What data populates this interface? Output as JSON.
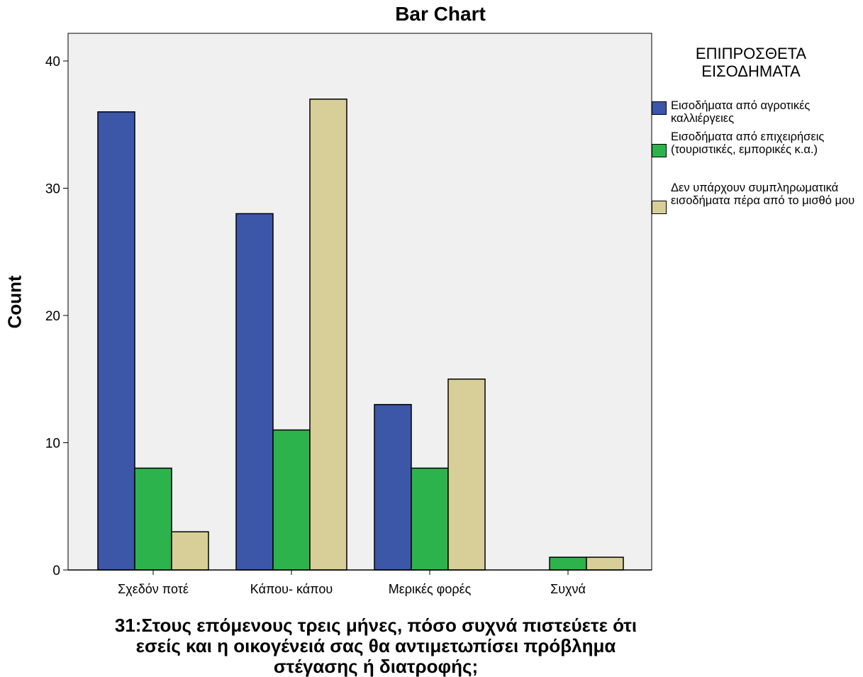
{
  "chart_data": {
    "type": "bar",
    "title": "Bar Chart",
    "xlabel": "31:Στους επόμενους τρεις μήνες, πόσο συχνά πιστεύετε ότι εσείς και η οικογένειά σας θα αντιμετωπίσει πρόβλημα στέγασης ή διατροφής;",
    "ylabel": "Count",
    "ylim": [
      0,
      42
    ],
    "yticks": [
      0,
      10,
      20,
      30,
      40
    ],
    "categories": [
      "Σχεδόν ποτέ",
      "Κάπου- κάπου",
      "Μερικές φορές",
      "Συχνά"
    ],
    "series": [
      {
        "name": "Εισοδήματα από αγροτικές καλλιέργειες",
        "color": "#3c56a8",
        "values": [
          36,
          28,
          13,
          0
        ]
      },
      {
        "name": "Εισοδήματα από επιχειρήσεις (τουριστικές, εμπορικές κ.α.)",
        "color": "#2db34c",
        "values": [
          8,
          11,
          8,
          1
        ]
      },
      {
        "name": "Δεν υπάρχουν συμπληρωματικά εισοδήματα πέρα από το μισθό μου",
        "color": "#d8cf98",
        "values": [
          3,
          37,
          15,
          1
        ]
      }
    ],
    "legend_title": "ΕΠΙΠΡΟΣΘΕΤΑ ΕΙΣΟΔΗΜΑΤΑ",
    "legend_position": "right",
    "plot_background": "#f0f0f0",
    "grid": false
  }
}
